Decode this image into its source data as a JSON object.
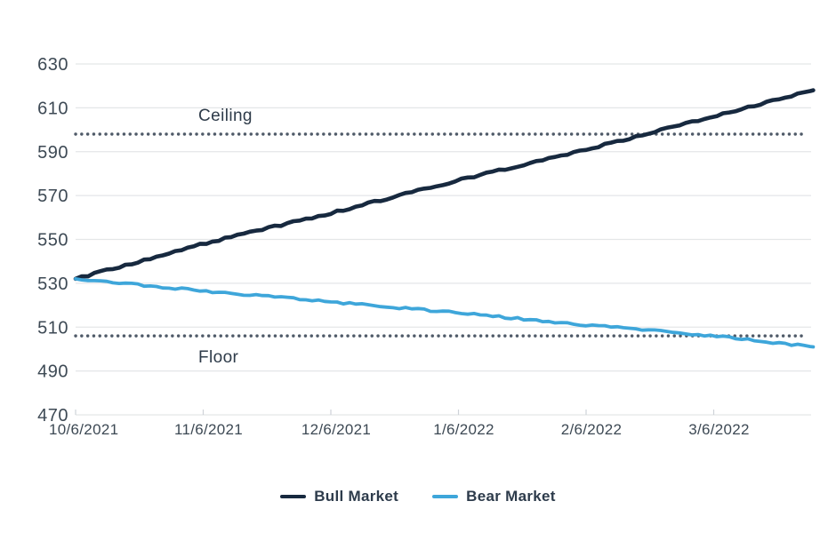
{
  "chart_data": {
    "type": "line",
    "title": "",
    "x_tick_labels": [
      "10/6/2021",
      "11/6/2021",
      "12/6/2021",
      "1/6/2022",
      "2/6/2022",
      "3/6/2022"
    ],
    "y_tick_labels": [
      470,
      490,
      510,
      530,
      550,
      570,
      590,
      610,
      630
    ],
    "ylim": [
      470,
      630
    ],
    "x_extent_months": 5.78,
    "grid": "horizontal",
    "legend_position": "bottom-center",
    "axis_text_color": "#3d4954",
    "gridline_color": "#e4e6e8",
    "series": [
      {
        "name": "Bull Market",
        "color": "#17293f",
        "monthly_values": [
          532,
          548,
          562,
          577,
          591,
          606
        ],
        "end_value": 618,
        "end_month": 5.78
      },
      {
        "name": "Bear Market",
        "color": "#3ea6da",
        "monthly_values": [
          532,
          526.5,
          521.5,
          516.5,
          511,
          506
        ],
        "end_value": 501,
        "end_month": 5.78
      }
    ],
    "reference_lines": [
      {
        "label": "Ceiling",
        "value": 598,
        "color": "#4f5a68",
        "style": "dotted"
      },
      {
        "label": "Floor",
        "value": 506,
        "color": "#4f5a68",
        "style": "dotted"
      }
    ]
  }
}
